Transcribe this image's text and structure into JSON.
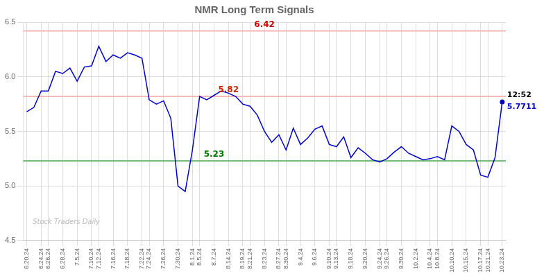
{
  "chart_data": {
    "type": "line",
    "title": "NMR Long Term Signals",
    "categories": [
      "6.20.24",
      null,
      "6.24.24",
      "6.26.24",
      null,
      "6.28.24",
      null,
      "7.5.24",
      null,
      "7.10.24",
      "7.12.24",
      null,
      "7.16.24",
      null,
      "7.18.24",
      null,
      "7.22.24",
      "7.24.24",
      null,
      "7.26.24",
      null,
      "7.30.24",
      null,
      "8.1.24",
      "8.5.24",
      null,
      "8.7.24",
      null,
      "8.14.24",
      null,
      "8.19.24",
      "8.21.24",
      null,
      "8.23.24",
      null,
      "8.27.24",
      "8.30.24",
      null,
      "9.4.24",
      null,
      "9.6.24",
      null,
      "9.10.24",
      "9.13.24",
      null,
      "9.18.24",
      null,
      "9.20.24",
      null,
      "9.24.24",
      "9.26.24",
      null,
      "9.30.24",
      null,
      "10.2.24",
      null,
      "10.4.24",
      "10.8.24",
      null,
      "10.10.24",
      null,
      "10.15.24",
      null,
      "10.17.24",
      "10.21.24",
      null,
      "10.23.24"
    ],
    "values": [
      5.68,
      5.72,
      5.87,
      5.87,
      6.05,
      6.03,
      6.08,
      5.96,
      6.09,
      6.1,
      6.28,
      6.14,
      6.2,
      6.17,
      6.22,
      6.2,
      6.17,
      5.79,
      5.75,
      5.78,
      5.62,
      5.0,
      4.95,
      5.33,
      5.82,
      5.79,
      5.83,
      5.87,
      5.85,
      5.82,
      5.75,
      5.73,
      5.65,
      5.5,
      5.4,
      5.47,
      5.33,
      5.53,
      5.38,
      5.44,
      5.52,
      5.55,
      5.38,
      5.36,
      5.45,
      5.26,
      5.35,
      5.3,
      5.24,
      5.22,
      5.25,
      5.31,
      5.36,
      5.3,
      5.27,
      5.24,
      5.25,
      5.27,
      5.24,
      5.55,
      5.5,
      5.38,
      5.33,
      5.1,
      5.08,
      5.26,
      5.77
    ],
    "color": "#0000cc",
    "ylim": [
      4.5,
      6.5
    ],
    "yticks": [
      4.5,
      {
        "value": 5,
        "label": "5.0"
      },
      5.5,
      {
        "value": 6,
        "label": "6.0"
      },
      6.5
    ],
    "grid": true,
    "annotations": [
      {
        "type": "hline",
        "y": 6.42,
        "text": "6.42",
        "color": "#f5b8b8",
        "text_color": "#cc0000"
      },
      {
        "type": "hline",
        "y": 5.82,
        "text": "5.82",
        "color": "#f5b8b8",
        "text_color": "#cc2200"
      },
      {
        "type": "hline",
        "y": 5.23,
        "text": "5.23",
        "color": "#77bb77",
        "text_color": "#007700"
      },
      {
        "type": "current",
        "text": "12:52",
        "value_text": "5.7711",
        "color": "#0000cc"
      },
      {
        "type": "watermark",
        "text": "Stock Traders Daily"
      }
    ]
  }
}
